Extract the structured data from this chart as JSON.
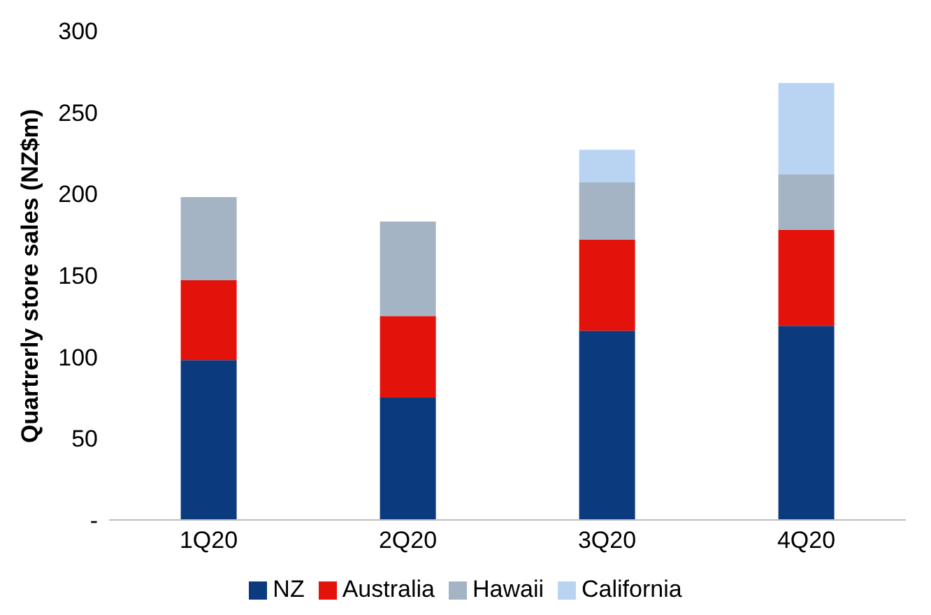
{
  "chart_data": {
    "type": "bar",
    "stacked": true,
    "ylabel": "Quartrerly store sales (NZ$m)",
    "categories": [
      "1Q20",
      "2Q20",
      "3Q20",
      "4Q20"
    ],
    "series": [
      {
        "name": "NZ",
        "color": "#0b3a7e",
        "values": [
          98,
          75,
          116,
          119
        ]
      },
      {
        "name": "Australia",
        "color": "#e3120b",
        "values": [
          49,
          50,
          56,
          59
        ]
      },
      {
        "name": "Hawaii",
        "color": "#a5b4c4",
        "values": [
          51,
          58,
          35,
          34
        ]
      },
      {
        "name": "California",
        "color": "#b9d3f3",
        "values": [
          null,
          null,
          20,
          56
        ]
      }
    ],
    "ylim": [
      0,
      300
    ],
    "yticks": [
      {
        "value": 0,
        "label": "-"
      },
      50,
      100,
      150,
      200,
      250,
      300
    ],
    "grid": false,
    "legend": "bottom"
  }
}
